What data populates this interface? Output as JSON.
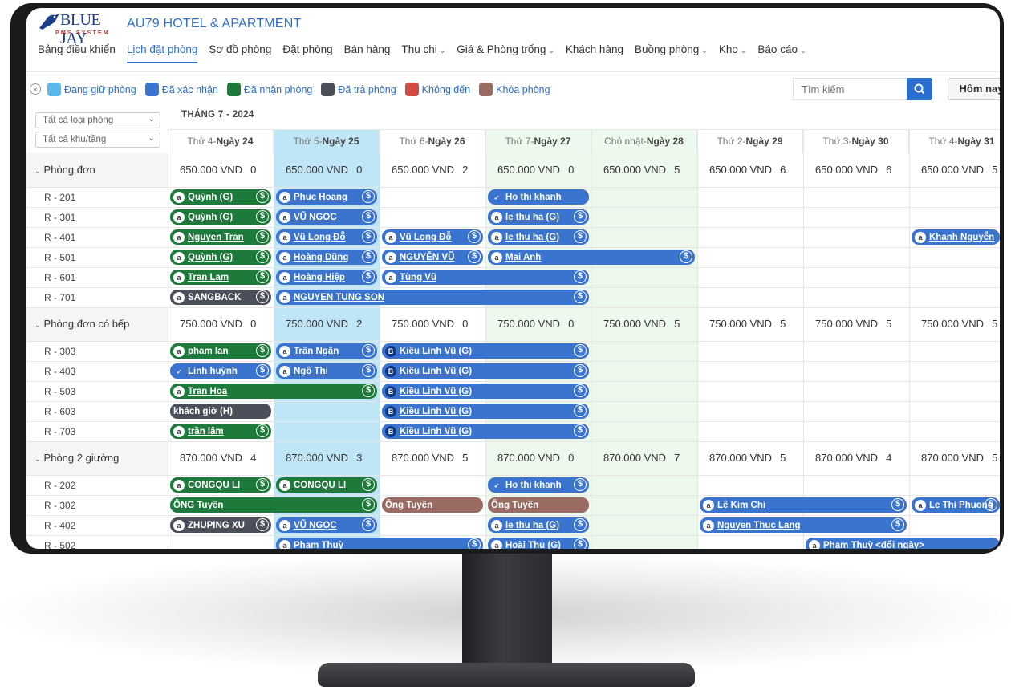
{
  "header": {
    "logo_text": "BLUE JAY",
    "logo_sub": "PMS SYSTEM",
    "hotel_name": "AU79 HOTEL & APARTMENT"
  },
  "nav": [
    {
      "label": "Bảng điều khiển",
      "dropdown": false,
      "active": false
    },
    {
      "label": "Lịch đặt phòng",
      "dropdown": false,
      "active": true
    },
    {
      "label": "Sơ đồ phòng",
      "dropdown": false,
      "active": false
    },
    {
      "label": "Đặt phòng",
      "dropdown": false,
      "active": false
    },
    {
      "label": "Bán hàng",
      "dropdown": false,
      "active": false
    },
    {
      "label": "Thu chi",
      "dropdown": true,
      "active": false
    },
    {
      "label": "Giá & Phòng trống",
      "dropdown": true,
      "active": false
    },
    {
      "label": "Khách hàng",
      "dropdown": false,
      "active": false
    },
    {
      "label": "Buồng phòng",
      "dropdown": true,
      "active": false
    },
    {
      "label": "Kho",
      "dropdown": true,
      "active": false
    },
    {
      "label": "Báo cáo",
      "dropdown": true,
      "active": false
    }
  ],
  "legend": [
    {
      "label": "Đang giữ phòng",
      "color": "#5bb8ea"
    },
    {
      "label": "Đã xác nhận",
      "color": "#3a74cf"
    },
    {
      "label": "Đã nhận phòng",
      "color": "#1d7a3b"
    },
    {
      "label": "Đã trả phòng",
      "color": "#4a4f59"
    },
    {
      "label": "Không đến",
      "color": "#cf4b43"
    },
    {
      "label": "Khóa phòng",
      "color": "#9a6b63"
    }
  ],
  "search": {
    "placeholder": "Tìm kiếm"
  },
  "today_button": "Hôm nay",
  "filters": {
    "room_type": "Tất cả loại phòng",
    "area": "Tất cả khu/tầng"
  },
  "month_label": "THÁNG 7 - 2024",
  "days": [
    {
      "dow": "Thứ 4",
      "day": "Ngày 24"
    },
    {
      "dow": "Thứ 5",
      "day": "Ngày 25"
    },
    {
      "dow": "Thứ 6",
      "day": "Ngày 26"
    },
    {
      "dow": "Thứ 7",
      "day": "Ngày 27"
    },
    {
      "dow": "Chủ nhật",
      "day": "Ngày 28"
    },
    {
      "dow": "Thứ 2",
      "day": "Ngày 29"
    },
    {
      "dow": "Thứ 3",
      "day": "Ngày 30"
    },
    {
      "dow": "Thứ 4",
      "day": "Ngày 31"
    }
  ],
  "categories": [
    {
      "name": "Phòng đơn",
      "prices": [
        {
          "price": "650.000 VND",
          "count": "0"
        },
        {
          "price": "650.000 VND",
          "count": "0"
        },
        {
          "price": "650.000 VND",
          "count": "2"
        },
        {
          "price": "650.000 VND",
          "count": "0"
        },
        {
          "price": "650.000 VND",
          "count": "5"
        },
        {
          "price": "650.000 VND",
          "count": "6"
        },
        {
          "price": "650.000 VND",
          "count": "6"
        },
        {
          "price": "650.000 VND",
          "count": "5"
        }
      ],
      "rooms": [
        {
          "name": "R - 201",
          "bookings": [
            {
              "guest": "Quỳnh (G)",
              "start": 0,
              "span": 1,
              "status": "green",
              "icon": "a",
              "dollar": true
            },
            {
              "guest": "Phuc Hoang",
              "start": 1,
              "span": 1,
              "status": "blue",
              "icon": "a",
              "dollar": true
            },
            {
              "guest": "Ho thi khanh",
              "start": 3,
              "span": 1,
              "status": "blue",
              "icon": "bird",
              "dollar": false
            }
          ]
        },
        {
          "name": "R - 301",
          "bookings": [
            {
              "guest": "Quỳnh (G)",
              "start": 0,
              "span": 1,
              "status": "green",
              "icon": "a",
              "dollar": true
            },
            {
              "guest": "VŨ NGỌC",
              "start": 1,
              "span": 1,
              "status": "blue",
              "icon": "a",
              "dollar": true
            },
            {
              "guest": "le thu ha (G)",
              "start": 3,
              "span": 1,
              "status": "blue",
              "icon": "a",
              "dollar": true
            }
          ]
        },
        {
          "name": "R - 401",
          "bookings": [
            {
              "guest": "Nguyen Tran",
              "start": 0,
              "span": 1,
              "status": "green",
              "icon": "a",
              "dollar": true
            },
            {
              "guest": "Vũ Long Đỗ",
              "start": 1,
              "span": 1,
              "status": "blue",
              "icon": "a",
              "dollar": true
            },
            {
              "guest": "Vũ Long Đỗ",
              "start": 2,
              "span": 1,
              "status": "blue",
              "icon": "a",
              "dollar": true
            },
            {
              "guest": "le thu ha (G)",
              "start": 3,
              "span": 1,
              "status": "blue",
              "icon": "a",
              "dollar": true
            },
            {
              "guest": "Khanh Nguyễn",
              "start": 7,
              "span": 1,
              "status": "blue",
              "icon": "a",
              "dollar": false
            }
          ]
        },
        {
          "name": "R - 501",
          "bookings": [
            {
              "guest": "Quỳnh (G)",
              "start": 0,
              "span": 1,
              "status": "green",
              "icon": "a",
              "dollar": true
            },
            {
              "guest": "Hoàng Dũng",
              "start": 1,
              "span": 1,
              "status": "blue",
              "icon": "a",
              "dollar": true
            },
            {
              "guest": "NGUYỄN VŨ",
              "start": 2,
              "span": 1,
              "status": "blue",
              "icon": "a",
              "dollar": true
            },
            {
              "guest": "Mai Anh",
              "start": 3,
              "span": 2,
              "status": "blue",
              "icon": "a",
              "dollar": true
            }
          ]
        },
        {
          "name": "R - 601",
          "bookings": [
            {
              "guest": "Tran Lam",
              "start": 0,
              "span": 1,
              "status": "green",
              "icon": "a",
              "dollar": true
            },
            {
              "guest": "Hoàng Hiệp",
              "start": 1,
              "span": 1,
              "status": "blue",
              "icon": "a",
              "dollar": true
            },
            {
              "guest": "Tùng Vũ",
              "start": 2,
              "span": 2,
              "status": "blue",
              "icon": "a",
              "dollar": true
            }
          ]
        },
        {
          "name": "R - 701",
          "bookings": [
            {
              "guest": "SANGBACK",
              "start": 0,
              "span": 1,
              "status": "dark",
              "icon": "a",
              "dollar": true
            },
            {
              "guest": "NGUYEN TUNG SON",
              "start": 1,
              "span": 3,
              "status": "blue",
              "icon": "a",
              "dollar": true
            }
          ]
        }
      ]
    },
    {
      "name": "Phòng đơn có bếp",
      "prices": [
        {
          "price": "750.000 VND",
          "count": "0"
        },
        {
          "price": "750.000 VND",
          "count": "2"
        },
        {
          "price": "750.000 VND",
          "count": "0"
        },
        {
          "price": "750.000 VND",
          "count": "0"
        },
        {
          "price": "750.000 VND",
          "count": "5"
        },
        {
          "price": "750.000 VND",
          "count": "5"
        },
        {
          "price": "750.000 VND",
          "count": "5"
        },
        {
          "price": "750.000 VND",
          "count": "5"
        }
      ],
      "rooms": [
        {
          "name": "R - 303",
          "bookings": [
            {
              "guest": "pham lan",
              "start": 0,
              "span": 1,
              "status": "green",
              "icon": "a",
              "dollar": true
            },
            {
              "guest": "Trần Ngân",
              "start": 1,
              "span": 1,
              "status": "blue",
              "icon": "a",
              "dollar": true
            },
            {
              "guest": "Kiều Linh Vũ (G)",
              "start": 2,
              "span": 2,
              "status": "blue",
              "icon": "B",
              "dollar": true
            }
          ]
        },
        {
          "name": "R - 403",
          "bookings": [
            {
              "guest": "Linh huỳnh",
              "start": 0,
              "span": 1,
              "status": "blue",
              "icon": "bird",
              "dollar": true
            },
            {
              "guest": "Ngô Thị",
              "start": 1,
              "span": 1,
              "status": "blue",
              "icon": "a",
              "dollar": true
            },
            {
              "guest": "Kiều Linh Vũ (G)",
              "start": 2,
              "span": 2,
              "status": "blue",
              "icon": "B",
              "dollar": true
            }
          ]
        },
        {
          "name": "R - 503",
          "bookings": [
            {
              "guest": "Tran Hoa",
              "start": 0,
              "span": 2,
              "status": "green",
              "icon": "a",
              "dollar": true
            },
            {
              "guest": "Kiều Linh Vũ (G)",
              "start": 2,
              "span": 2,
              "status": "blue",
              "icon": "B",
              "dollar": true
            }
          ]
        },
        {
          "name": "R - 603",
          "bookings": [
            {
              "guest": "khách giờ (H)",
              "start": 0,
              "span": 1,
              "status": "dark",
              "icon": "",
              "dollar": false
            },
            {
              "guest": "Kiều Linh Vũ (G)",
              "start": 2,
              "span": 2,
              "status": "blue",
              "icon": "B",
              "dollar": true
            }
          ]
        },
        {
          "name": "R - 703",
          "bookings": [
            {
              "guest": "trần lâm",
              "start": 0,
              "span": 1,
              "status": "green",
              "icon": "a",
              "dollar": true
            },
            {
              "guest": "Kiều Linh Vũ (G)",
              "start": 2,
              "span": 2,
              "status": "blue",
              "icon": "B",
              "dollar": true
            }
          ]
        }
      ]
    },
    {
      "name": "Phòng 2 giường",
      "prices": [
        {
          "price": "870.000 VND",
          "count": "4"
        },
        {
          "price": "870.000 VND",
          "count": "3"
        },
        {
          "price": "870.000 VND",
          "count": "5"
        },
        {
          "price": "870.000 VND",
          "count": "0"
        },
        {
          "price": "870.000 VND",
          "count": "7"
        },
        {
          "price": "870.000 VND",
          "count": "5"
        },
        {
          "price": "870.000 VND",
          "count": "4"
        },
        {
          "price": "870.000 VND",
          "count": "5"
        }
      ],
      "rooms": [
        {
          "name": "R - 202",
          "bookings": [
            {
              "guest": "CONGQU LI",
              "start": 0,
              "span": 1,
              "status": "green",
              "icon": "a",
              "dollar": true
            },
            {
              "guest": "CONGQU LI",
              "start": 1,
              "span": 1,
              "status": "green",
              "icon": "a",
              "dollar": true
            },
            {
              "guest": "Ho thi khanh",
              "start": 3,
              "span": 1,
              "status": "blue",
              "icon": "bird",
              "dollar": true
            }
          ]
        },
        {
          "name": "R - 302",
          "bookings": [
            {
              "guest": "ÔNG Tuyền",
              "start": 0,
              "span": 2,
              "status": "green",
              "icon": "",
              "dollar": true
            },
            {
              "guest": "Ông Tuyền",
              "start": 2,
              "span": 1,
              "status": "brown",
              "icon": "",
              "dollar": false
            },
            {
              "guest": "Ông Tuyền",
              "start": 3,
              "span": 1,
              "status": "brown",
              "icon": "",
              "dollar": false
            },
            {
              "guest": "Lê Kim Chi",
              "start": 5,
              "span": 2,
              "status": "blue",
              "icon": "a",
              "dollar": true
            },
            {
              "guest": "Le Thi Phuong",
              "start": 7,
              "span": 1,
              "status": "blue",
              "icon": "a",
              "dollar": true
            }
          ]
        },
        {
          "name": "R - 402",
          "bookings": [
            {
              "guest": "ZHUPING XU",
              "start": 0,
              "span": 1,
              "status": "dark",
              "icon": "a",
              "dollar": true
            },
            {
              "guest": "VŨ NGỌC",
              "start": 1,
              "span": 1,
              "status": "blue",
              "icon": "a",
              "dollar": true
            },
            {
              "guest": "le thu ha (G)",
              "start": 3,
              "span": 1,
              "status": "blue",
              "icon": "a",
              "dollar": true
            },
            {
              "guest": "Nguyen Thuc Lang",
              "start": 5,
              "span": 2,
              "status": "blue",
              "icon": "a",
              "dollar": true
            }
          ]
        },
        {
          "name": "R - 502",
          "bookings": [
            {
              "guest": "Phạm Thuỳ",
              "start": 1,
              "span": 2,
              "status": "blue",
              "icon": "a",
              "dollar": true
            },
            {
              "guest": "Hoài Thu (G)",
              "start": 3,
              "span": 1,
              "status": "blue",
              "icon": "a",
              "dollar": true
            },
            {
              "guest": "Phạm Thuỳ <đổi ngày>",
              "start": 6,
              "span": 2,
              "status": "blue",
              "icon": "a",
              "dollar": false
            }
          ]
        }
      ]
    }
  ]
}
